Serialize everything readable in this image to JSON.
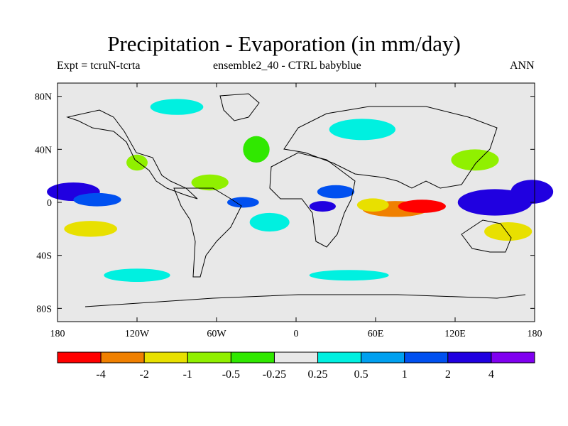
{
  "title": "Precipitation - Evaporation (in mm/day)",
  "subtitle_left": "Expt = tcruN-tcrta",
  "subtitle_center": "ensemble2_40 - CTRL babyblue",
  "subtitle_right": "ANN",
  "chart_data": {
    "type": "heatmap",
    "variable": "Precipitation - Evaporation",
    "units": "mm/day",
    "lon_range": [
      -180,
      180
    ],
    "lat_range": [
      -90,
      90
    ],
    "lon_ticks": [
      {
        "value": -180,
        "label": "180"
      },
      {
        "value": -120,
        "label": "120W"
      },
      {
        "value": -60,
        "label": "60W"
      },
      {
        "value": 0,
        "label": "0"
      },
      {
        "value": 60,
        "label": "60E"
      },
      {
        "value": 120,
        "label": "120E"
      },
      {
        "value": 180,
        "label": "180"
      }
    ],
    "lat_ticks": [
      {
        "value": 80,
        "label": "80N"
      },
      {
        "value": 40,
        "label": "40N"
      },
      {
        "value": 0,
        "label": "0"
      },
      {
        "value": -40,
        "label": "40S"
      },
      {
        "value": -80,
        "label": "80S"
      }
    ],
    "levels": [
      -4,
      -2,
      -1,
      -0.5,
      -0.25,
      0.25,
      0.5,
      1,
      2,
      4
    ],
    "level_labels": [
      "-4",
      "-2",
      "-1",
      "-0.5",
      "-0.25",
      "0.25",
      "0.5",
      "1",
      "2",
      "4"
    ],
    "colors": [
      "#ff0000",
      "#f08000",
      "#e8e000",
      "#90f000",
      "#30e800",
      "#e8e8e8",
      "#00f0e0",
      "#00a0f0",
      "#0050f0",
      "#2000e0",
      "#8000f0"
    ],
    "regions": [
      {
        "lon": 150,
        "lat": 0,
        "rx": 28,
        "ry": 10,
        "value": 3
      },
      {
        "lon": 178,
        "lat": 8,
        "rx": 16,
        "ry": 9,
        "value": 3
      },
      {
        "lon": -168,
        "lat": 8,
        "rx": 20,
        "ry": 7,
        "value": 2.5
      },
      {
        "lon": -150,
        "lat": 2,
        "rx": 18,
        "ry": 5,
        "value": 1.2
      },
      {
        "lon": -40,
        "lat": 0,
        "rx": 12,
        "ry": 4,
        "value": 1.5
      },
      {
        "lon": 30,
        "lat": 8,
        "rx": 14,
        "ry": 5,
        "value": 1.5
      },
      {
        "lon": 20,
        "lat": -3,
        "rx": 10,
        "ry": 4,
        "value": 2
      },
      {
        "lon": 75,
        "lat": -5,
        "rx": 25,
        "ry": 6,
        "value": -3
      },
      {
        "lon": 95,
        "lat": -3,
        "rx": 18,
        "ry": 5,
        "value": -5
      },
      {
        "lon": 58,
        "lat": -2,
        "rx": 12,
        "ry": 5,
        "value": -1.5
      },
      {
        "lon": 160,
        "lat": -22,
        "rx": 18,
        "ry": 7,
        "value": -1.5
      },
      {
        "lon": -155,
        "lat": -20,
        "rx": 20,
        "ry": 6,
        "value": -1.2
      },
      {
        "lon": -120,
        "lat": 30,
        "rx": 8,
        "ry": 6,
        "value": -0.7
      },
      {
        "lon": -65,
        "lat": 15,
        "rx": 14,
        "ry": 6,
        "value": -0.7
      },
      {
        "lon": 135,
        "lat": 32,
        "rx": 18,
        "ry": 8,
        "value": -0.7
      },
      {
        "lon": -30,
        "lat": 40,
        "rx": 10,
        "ry": 10,
        "value": -0.4
      },
      {
        "lon": -90,
        "lat": 72,
        "rx": 20,
        "ry": 6,
        "value": 0.35
      },
      {
        "lon": 50,
        "lat": 55,
        "rx": 25,
        "ry": 8,
        "value": 0.35
      },
      {
        "lon": -120,
        "lat": -55,
        "rx": 25,
        "ry": 5,
        "value": 0.35
      },
      {
        "lon": 40,
        "lat": -55,
        "rx": 30,
        "ry": 4,
        "value": 0.35
      },
      {
        "lon": -20,
        "lat": -15,
        "rx": 15,
        "ry": 7,
        "value": 0.35
      }
    ],
    "colorbar": {
      "lon_start": -180,
      "lon_end": 180
    }
  }
}
